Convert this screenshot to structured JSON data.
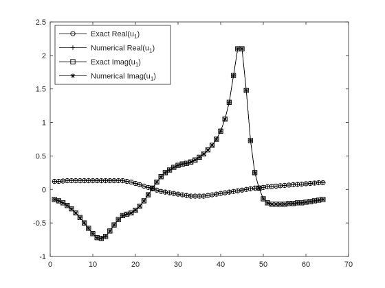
{
  "chart_data": {
    "type": "line",
    "title": "",
    "xlabel": "",
    "ylabel": "",
    "xlim": [
      0,
      70
    ],
    "ylim": [
      -1,
      2.5
    ],
    "xticks": [
      0,
      10,
      20,
      30,
      40,
      50,
      60,
      70
    ],
    "xtick_labels": [
      "0",
      "10",
      "20",
      "30",
      "40",
      "50",
      "60",
      "70"
    ],
    "yticks": [
      -1,
      -0.5,
      0,
      0.5,
      1,
      1.5,
      2,
      2.5
    ],
    "ytick_labels": [
      "-1",
      "-0.5",
      "0",
      "0.5",
      "1",
      "1.5",
      "2",
      "2.5"
    ],
    "grid": false,
    "legend_position": "top-left",
    "line_color": "#000000",
    "x": [
      1,
      2,
      3,
      4,
      5,
      6,
      7,
      8,
      9,
      10,
      11,
      12,
      13,
      14,
      15,
      16,
      17,
      18,
      19,
      20,
      21,
      22,
      23,
      24,
      25,
      26,
      27,
      28,
      29,
      30,
      31,
      32,
      33,
      34,
      35,
      36,
      37,
      38,
      39,
      40,
      41,
      42,
      43,
      44,
      45,
      46,
      47,
      48,
      49,
      50,
      51,
      52,
      53,
      54,
      55,
      56,
      57,
      58,
      59,
      60,
      61,
      62,
      63,
      64
    ],
    "series": [
      {
        "name": "Exact Real(u",
        "subscript": "1",
        "suffix": ")",
        "marker": "circle",
        "values": [
          0.12,
          0.12,
          0.125,
          0.13,
          0.13,
          0.13,
          0.13,
          0.13,
          0.13,
          0.13,
          0.13,
          0.13,
          0.13,
          0.13,
          0.13,
          0.13,
          0.13,
          0.12,
          0.11,
          0.09,
          0.07,
          0.05,
          0.03,
          0.01,
          -0.01,
          -0.03,
          -0.04,
          -0.05,
          -0.06,
          -0.07,
          -0.08,
          -0.09,
          -0.1,
          -0.1,
          -0.1,
          -0.1,
          -0.09,
          -0.08,
          -0.07,
          -0.06,
          -0.05,
          -0.04,
          -0.03,
          -0.02,
          -0.01,
          0.0,
          0.01,
          0.02,
          0.02,
          0.03,
          0.04,
          0.045,
          0.05,
          0.055,
          0.06,
          0.065,
          0.07,
          0.075,
          0.08,
          0.085,
          0.09,
          0.095,
          0.1,
          0.1
        ]
      },
      {
        "name": "Numerical Real(u",
        "subscript": "1",
        "suffix": ")",
        "marker": "plus",
        "values": [
          0.12,
          0.12,
          0.125,
          0.13,
          0.13,
          0.13,
          0.13,
          0.13,
          0.13,
          0.13,
          0.13,
          0.13,
          0.13,
          0.13,
          0.13,
          0.13,
          0.13,
          0.12,
          0.11,
          0.09,
          0.07,
          0.05,
          0.03,
          0.01,
          -0.01,
          -0.03,
          -0.04,
          -0.05,
          -0.06,
          -0.07,
          -0.08,
          -0.09,
          -0.1,
          -0.1,
          -0.1,
          -0.1,
          -0.09,
          -0.08,
          -0.07,
          -0.06,
          -0.05,
          -0.04,
          -0.03,
          -0.02,
          -0.01,
          0.0,
          0.01,
          0.02,
          0.02,
          0.03,
          0.04,
          0.045,
          0.05,
          0.055,
          0.06,
          0.065,
          0.07,
          0.075,
          0.08,
          0.085,
          0.09,
          0.095,
          0.1,
          0.1
        ]
      },
      {
        "name": "Exact Imag(u",
        "subscript": "1",
        "suffix": ")",
        "marker": "square",
        "values": [
          -0.15,
          -0.17,
          -0.2,
          -0.24,
          -0.29,
          -0.35,
          -0.42,
          -0.5,
          -0.58,
          -0.66,
          -0.72,
          -0.73,
          -0.7,
          -0.62,
          -0.53,
          -0.45,
          -0.39,
          -0.37,
          -0.35,
          -0.31,
          -0.25,
          -0.17,
          -0.08,
          0.02,
          0.11,
          0.19,
          0.25,
          0.29,
          0.33,
          0.36,
          0.38,
          0.39,
          0.41,
          0.44,
          0.48,
          0.53,
          0.59,
          0.66,
          0.75,
          0.87,
          1.05,
          1.3,
          1.7,
          2.1,
          2.1,
          1.48,
          0.73,
          0.25,
          0.02,
          -0.14,
          -0.2,
          -0.22,
          -0.22,
          -0.22,
          -0.22,
          -0.21,
          -0.21,
          -0.2,
          -0.2,
          -0.19,
          -0.18,
          -0.17,
          -0.16,
          -0.15
        ]
      },
      {
        "name": "Numerical Imag(u",
        "subscript": "1",
        "suffix": ")",
        "marker": "asterisk",
        "values": [
          -0.15,
          -0.17,
          -0.2,
          -0.24,
          -0.29,
          -0.35,
          -0.42,
          -0.5,
          -0.58,
          -0.66,
          -0.72,
          -0.73,
          -0.7,
          -0.62,
          -0.53,
          -0.45,
          -0.39,
          -0.37,
          -0.35,
          -0.31,
          -0.25,
          -0.17,
          -0.08,
          0.02,
          0.11,
          0.19,
          0.25,
          0.29,
          0.33,
          0.36,
          0.38,
          0.39,
          0.41,
          0.44,
          0.48,
          0.53,
          0.59,
          0.66,
          0.75,
          0.87,
          1.05,
          1.3,
          1.7,
          2.1,
          2.1,
          1.48,
          0.73,
          0.25,
          0.02,
          -0.14,
          -0.2,
          -0.22,
          -0.22,
          -0.22,
          -0.22,
          -0.21,
          -0.21,
          -0.2,
          -0.2,
          -0.19,
          -0.18,
          -0.17,
          -0.16,
          -0.15
        ]
      }
    ]
  }
}
